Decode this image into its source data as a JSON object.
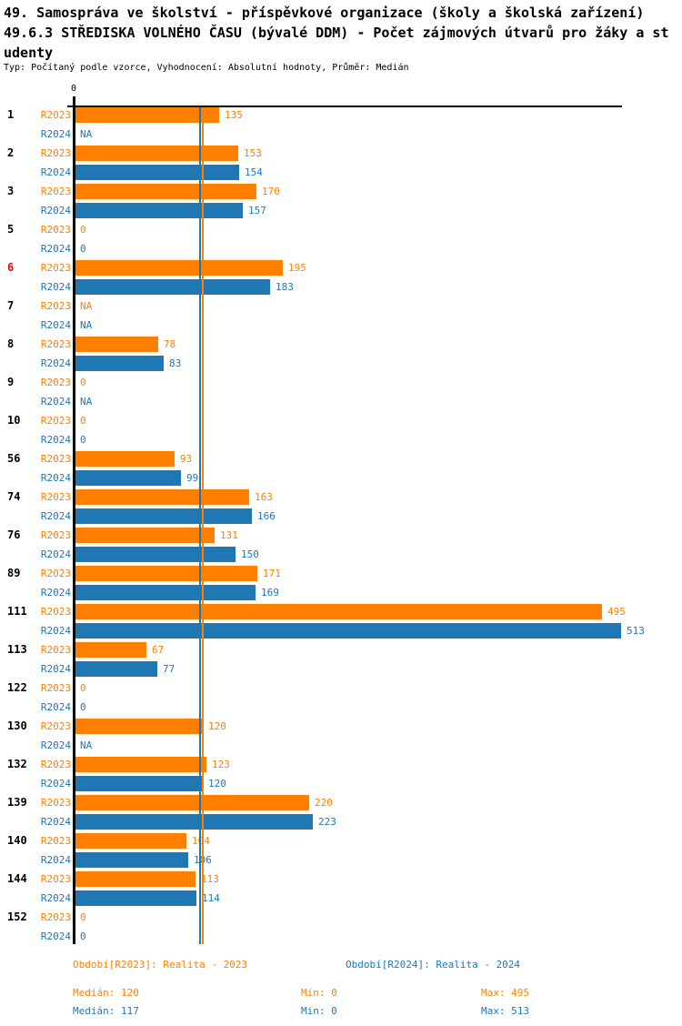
{
  "header": {
    "title_line1": "49. Samospráva ve školství - příspěvkové organizace (školy a školská zařízení)",
    "title_line2": "49.6.3 STŘEDISKA VOLNÉHO ČASU (bývalé DDM) - Počet zájmových útvarů pro žáky a st",
    "title_line3": "udenty",
    "subtitle": "Typ: Počítaný podle vzorce, Vyhodnocení: Absolutní hodnoty, Průměr: Medián"
  },
  "axis": {
    "origin_tick_label": "0"
  },
  "colors": {
    "r2023": "#ff8000",
    "r2024": "#1f77b4",
    "highlight": "#ff0000",
    "axis": "#000000"
  },
  "chart_data": {
    "type": "bar",
    "orientation": "horizontal",
    "title": "49.6.3 STŘEDISKA VOLNÉHO ČASU (bývalé DDM) - Počet zájmových útvarů pro žáky a studenty",
    "categories": [
      "1",
      "2",
      "3",
      "5",
      "6",
      "7",
      "8",
      "9",
      "10",
      "56",
      "74",
      "76",
      "89",
      "111",
      "113",
      "122",
      "130",
      "132",
      "139",
      "140",
      "144",
      "152"
    ],
    "highlighted_category": "6",
    "na_text": "NA",
    "x_axis": {
      "min": 0,
      "origin_label": "0",
      "grid": false
    },
    "legend_position": "bottom",
    "series": [
      {
        "name": "R2023",
        "legend": "Období[R2023]: Realita - 2023",
        "color": "#ff8000",
        "median": 120,
        "min": 0,
        "max": 495,
        "values": [
          135,
          153,
          170,
          0,
          195,
          "NA",
          78,
          0,
          0,
          93,
          163,
          131,
          171,
          495,
          67,
          0,
          120,
          123,
          220,
          104,
          113,
          0
        ]
      },
      {
        "name": "R2024",
        "legend": "Období[R2024]: Realita - 2024",
        "color": "#1f77b4",
        "median": 117,
        "min": 0,
        "max": 513,
        "values": [
          "NA",
          154,
          157,
          0,
          183,
          "NA",
          83,
          "NA",
          0,
          99,
          166,
          150,
          169,
          513,
          77,
          0,
          "NA",
          120,
          223,
          106,
          114,
          0
        ]
      }
    ]
  },
  "footer": {
    "legend_r2023": "Období[R2023]: Realita - 2023",
    "legend_r2024": "Období[R2024]: Realita - 2024",
    "stats_r2023": {
      "median": "Medián: 120",
      "min": "Min: 0",
      "max": "Max: 495"
    },
    "stats_r2024": {
      "median": "Medián: 117",
      "min": "Min: 0",
      "max": "Max: 513"
    }
  }
}
